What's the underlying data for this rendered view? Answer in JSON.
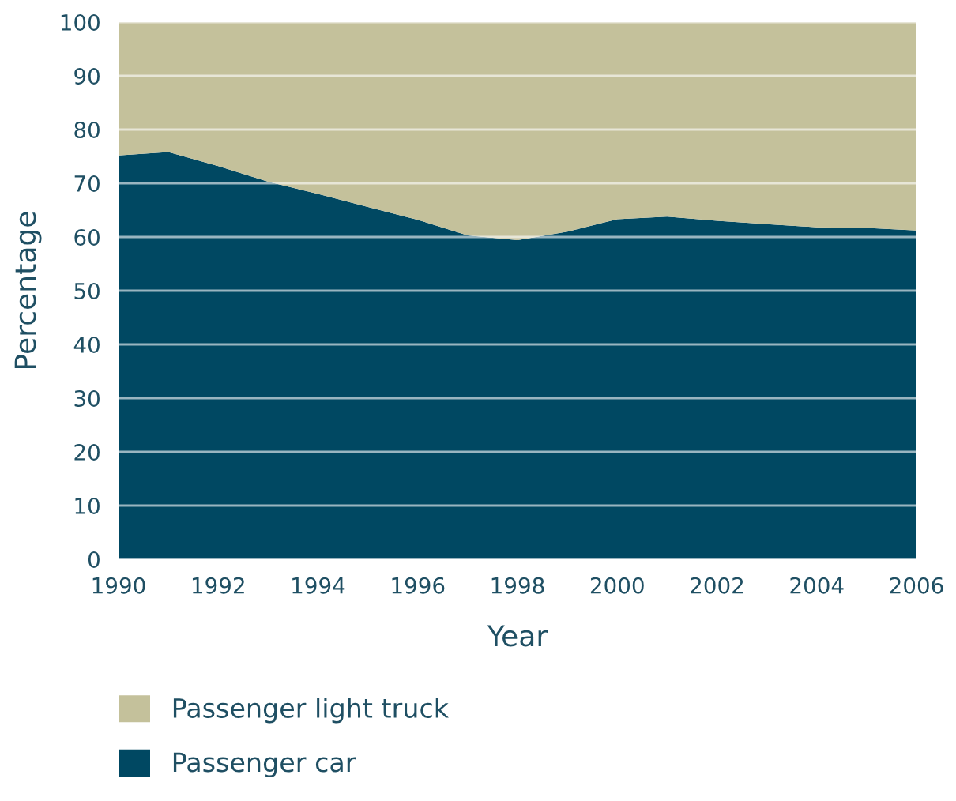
{
  "chart_data": {
    "type": "area",
    "stacked": true,
    "xlabel": "Year",
    "ylabel": "Percentage",
    "x": [
      1990,
      1991,
      1992,
      1993,
      1994,
      1995,
      1996,
      1997,
      1998,
      1999,
      2000,
      2001,
      2002,
      2003,
      2004,
      2005,
      2006
    ],
    "series": [
      {
        "name": "Passenger car",
        "color": "#004862",
        "values": [
          75.2,
          75.8,
          73.2,
          70.3,
          68,
          65.6,
          63.2,
          60.3,
          59.4,
          61,
          63.3,
          63.8,
          63,
          62.4,
          61.8,
          61.7,
          61.2
        ]
      },
      {
        "name": "Passenger light truck",
        "color": "#c4c19b",
        "values": [
          24.8,
          24.2,
          26.8,
          29.7,
          32,
          34.4,
          36.8,
          39.7,
          40.6,
          39,
          36.7,
          36.2,
          37,
          37.6,
          38.2,
          38.3,
          38.8
        ]
      }
    ],
    "xlim": [
      1990,
      2006
    ],
    "xticks": [
      1990,
      1992,
      1994,
      1996,
      1998,
      2000,
      2002,
      2004,
      2006
    ],
    "ylim": [
      0,
      100
    ],
    "yticks": [
      0,
      10,
      20,
      30,
      40,
      50,
      60,
      70,
      80,
      90,
      100
    ],
    "grid": "y",
    "legend": "bottom left"
  }
}
